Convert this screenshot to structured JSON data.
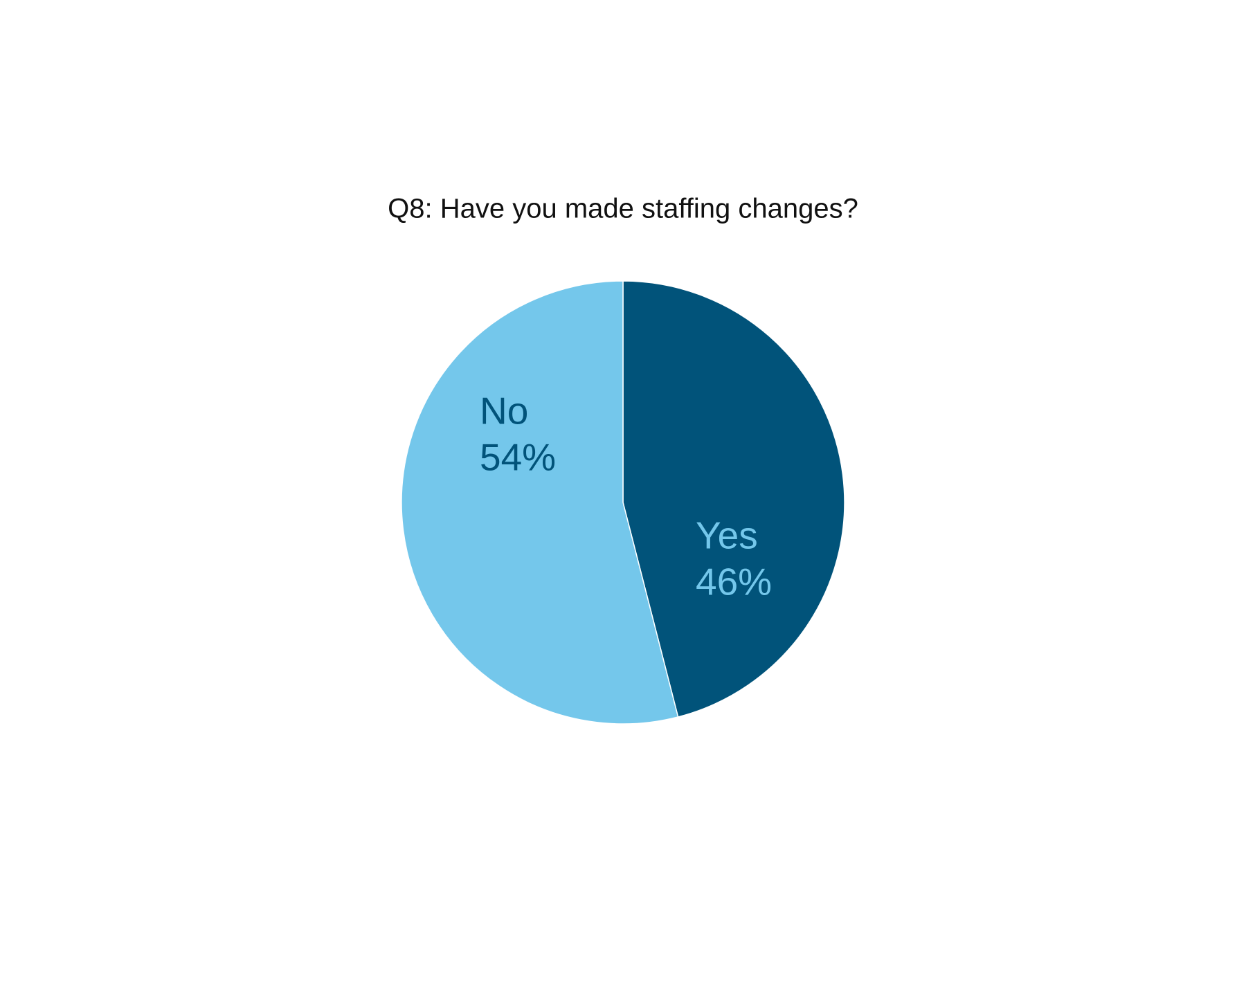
{
  "chart_data": {
    "type": "pie",
    "title": "Q8: Have you made staffing changes?",
    "categories": [
      "Yes",
      "No"
    ],
    "values": [
      46,
      54
    ],
    "value_labels": [
      "46%",
      "54%"
    ],
    "colors": [
      "#01537a",
      "#74c7eb"
    ],
    "label_colors": [
      "#74c7eb",
      "#01537a"
    ]
  }
}
